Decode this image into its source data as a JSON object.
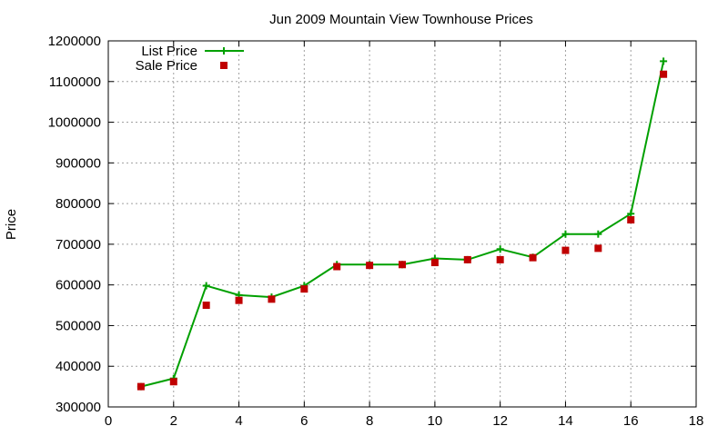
{
  "chart_data": {
    "type": "line",
    "title": "Jun 2009 Mountain View Townhouse Prices",
    "xlabel": "",
    "ylabel": "Price",
    "xlim": [
      0,
      18
    ],
    "ylim": [
      300000,
      1200000
    ],
    "x_ticks": [
      0,
      2,
      4,
      6,
      8,
      10,
      12,
      14,
      16,
      18
    ],
    "y_ticks": [
      300000,
      400000,
      500000,
      600000,
      700000,
      800000,
      900000,
      1000000,
      1100000,
      1200000
    ],
    "grid": true,
    "legend_position": "top-left",
    "series": [
      {
        "name": "List Price",
        "style": "line-plus",
        "color": "#00a000",
        "x": [
          1,
          2,
          3,
          4,
          5,
          6,
          7,
          8,
          9,
          10,
          11,
          12,
          13,
          14,
          15,
          16,
          17
        ],
        "values": [
          350000,
          370000,
          598000,
          575000,
          570000,
          598000,
          650000,
          650000,
          650000,
          665000,
          662000,
          688000,
          668000,
          725000,
          725000,
          775000,
          1150000
        ]
      },
      {
        "name": "Sale Price",
        "style": "square",
        "color": "#c00000",
        "x": [
          1,
          2,
          3,
          4,
          5,
          6,
          7,
          8,
          9,
          10,
          11,
          12,
          13,
          14,
          15,
          16,
          17
        ],
        "values": [
          350000,
          362000,
          550000,
          562000,
          565000,
          590000,
          645000,
          648000,
          650000,
          655000,
          662000,
          662000,
          667000,
          685000,
          690000,
          760000,
          1118000
        ]
      }
    ]
  }
}
